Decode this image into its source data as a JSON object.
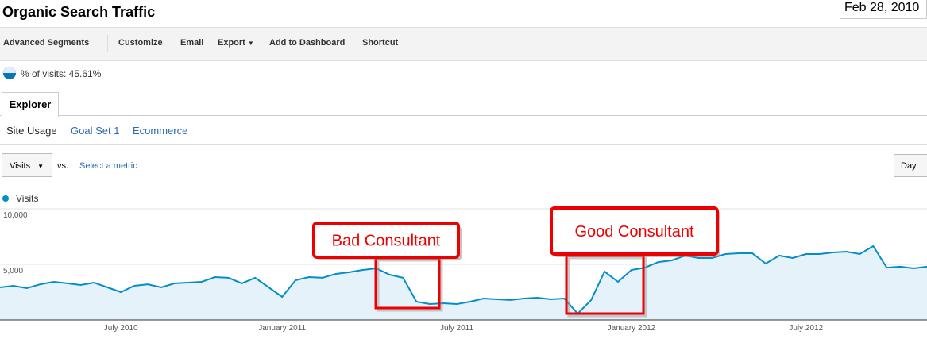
{
  "header": {
    "title": "Organic Search Traffic",
    "date": "Feb 28, 2010"
  },
  "toolbar": [
    "Advanced Segments",
    "Customize",
    "Email",
    "Export",
    "Add to Dashboard",
    "Shortcut"
  ],
  "segment": "% of visits: 45.61%",
  "tab": "Explorer",
  "subtabs": [
    "Site Usage",
    "Goal Set 1",
    "Ecommerce"
  ],
  "metric": {
    "selected": "Visits",
    "vs": "vs.",
    "select": "Select a metric",
    "interval": "Day"
  },
  "chart_data": {
    "type": "area",
    "series": [
      {
        "name": "Visits",
        "color": "#058dc7",
        "values": [
          2930,
          3070,
          2860,
          3210,
          3430,
          3290,
          3140,
          3360,
          2930,
          2500,
          3070,
          3210,
          2930,
          3290,
          3360,
          3430,
          3860,
          3790,
          3290,
          3790,
          2930,
          2070,
          3570,
          3860,
          3790,
          4140,
          4290,
          4500,
          4640,
          4070,
          3790,
          1640,
          1430,
          1500,
          1430,
          1640,
          1930,
          1860,
          1790,
          1930,
          2000,
          1860,
          1930,
          570,
          1790,
          4360,
          3430,
          4500,
          4710,
          5210,
          5360,
          5790,
          5570,
          5570,
          5930,
          6000,
          6000,
          5070,
          5790,
          5570,
          5930,
          5930,
          6070,
          6140,
          5930,
          6640,
          4710,
          4790,
          4640,
          4790
        ]
      }
    ],
    "categories": [
      null,
      null,
      null,
      null,
      null,
      null,
      null,
      null,
      null,
      "July 2010",
      null,
      null,
      null,
      null,
      null,
      null,
      null,
      null,
      null,
      null,
      null,
      "January 2011",
      null,
      null,
      null,
      null,
      null,
      null,
      null,
      null,
      null,
      null,
      null,
      null,
      "July 2011",
      null,
      null,
      null,
      null,
      null,
      null,
      null,
      null,
      null,
      null,
      null,
      null,
      "January 2012",
      null,
      null,
      null,
      null,
      null,
      null,
      null,
      null,
      null,
      null,
      null,
      null,
      "July 2012",
      null,
      null,
      null,
      null,
      null,
      null,
      null,
      null,
      null
    ],
    "ylim": [
      0,
      10000
    ],
    "yticks": [
      {
        "value": 5000,
        "label": "5,000"
      },
      {
        "value": 10000,
        "label": "10,000"
      }
    ],
    "grid": true,
    "annotations": [
      "Bad Consultant",
      "Good Consultant"
    ]
  }
}
